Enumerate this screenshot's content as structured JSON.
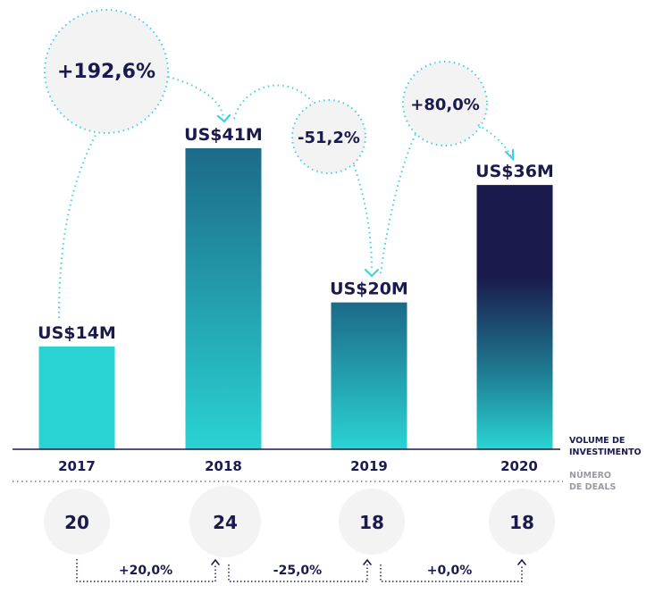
{
  "chart_data": {
    "type": "bar",
    "categories": [
      "2017",
      "2018",
      "2019",
      "2020"
    ],
    "values": [
      14,
      41,
      20,
      36
    ],
    "value_labels": [
      "US$14M",
      "US$41M",
      "US$20M",
      "US$36M"
    ],
    "ylim": [
      0,
      41
    ],
    "volume_label_line1": "VOLUME DE",
    "volume_label_line2": "INVESTIMENTO",
    "deals_label_line1": "NÚMERO",
    "deals_label_line2": "DE DEALS",
    "volume_changes": [
      "+192,6%",
      "-51,2%",
      "+80,0%"
    ],
    "deals": [
      20,
      24,
      18,
      18
    ],
    "deal_changes": [
      "+20,0%",
      "-25,0%",
      "+0,0%"
    ],
    "colors": {
      "teal_light": "#2ad3d3",
      "teal_dark": "#1c6a88",
      "navy": "#1b1a4d",
      "bubble_fill": "#f3f3f4",
      "dotted_cyan": "#3fd2dc",
      "dotted_grey": "#9a9aa3",
      "text_dark": "#1b1a4d"
    },
    "legend": "none",
    "grid": false
  }
}
